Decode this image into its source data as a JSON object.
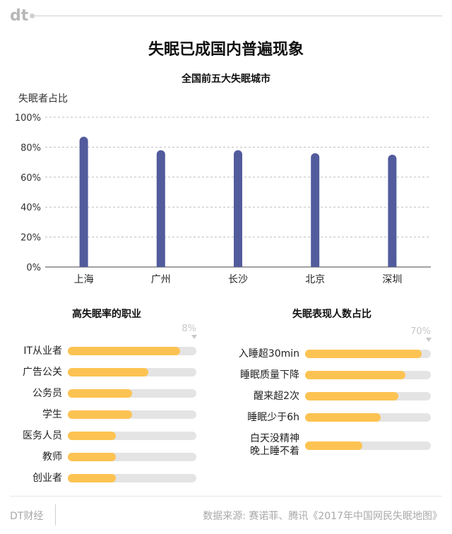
{
  "brand": {
    "logo": "dt",
    "footer": "DT财经"
  },
  "title": "失眠已成国内普遍现象",
  "source": "数据来源: 赛诺菲、腾讯《2017年中国网民失眠地图》",
  "colors": {
    "bar": "#525b9c",
    "fill": "#fdc352",
    "track": "#e4e4e4"
  },
  "chart_data": [
    {
      "type": "bar",
      "title": "全国前五大失眠城市",
      "ylabel": "失眠者占比",
      "categories": [
        "上海",
        "广州",
        "长沙",
        "北京",
        "深圳"
      ],
      "values": [
        87,
        78,
        78,
        76,
        75
      ],
      "ylim": [
        0,
        100
      ],
      "yticks": [
        "0%",
        "20%",
        "40%",
        "60%",
        "80%",
        "100%"
      ],
      "grid": true
    },
    {
      "type": "bar",
      "title": "高失眠率的职业",
      "max_label": "8%",
      "max": 8,
      "categories": [
        "IT从业者",
        "广告公关",
        "公务员",
        "学生",
        "医务人员",
        "教师",
        "创业者"
      ],
      "values": [
        7.0,
        5.0,
        4.0,
        4.0,
        3.0,
        3.0,
        3.0
      ]
    },
    {
      "type": "bar",
      "title": "失眠表现人数占比",
      "max_label": "70%",
      "max": 70,
      "categories": [
        "入睡超30min",
        "睡眠质量下降",
        "醒来超2次",
        "睡眠少于6h",
        "白天没精神\n晚上睡不着"
      ],
      "values": [
        65,
        56,
        52,
        42,
        32
      ]
    }
  ]
}
